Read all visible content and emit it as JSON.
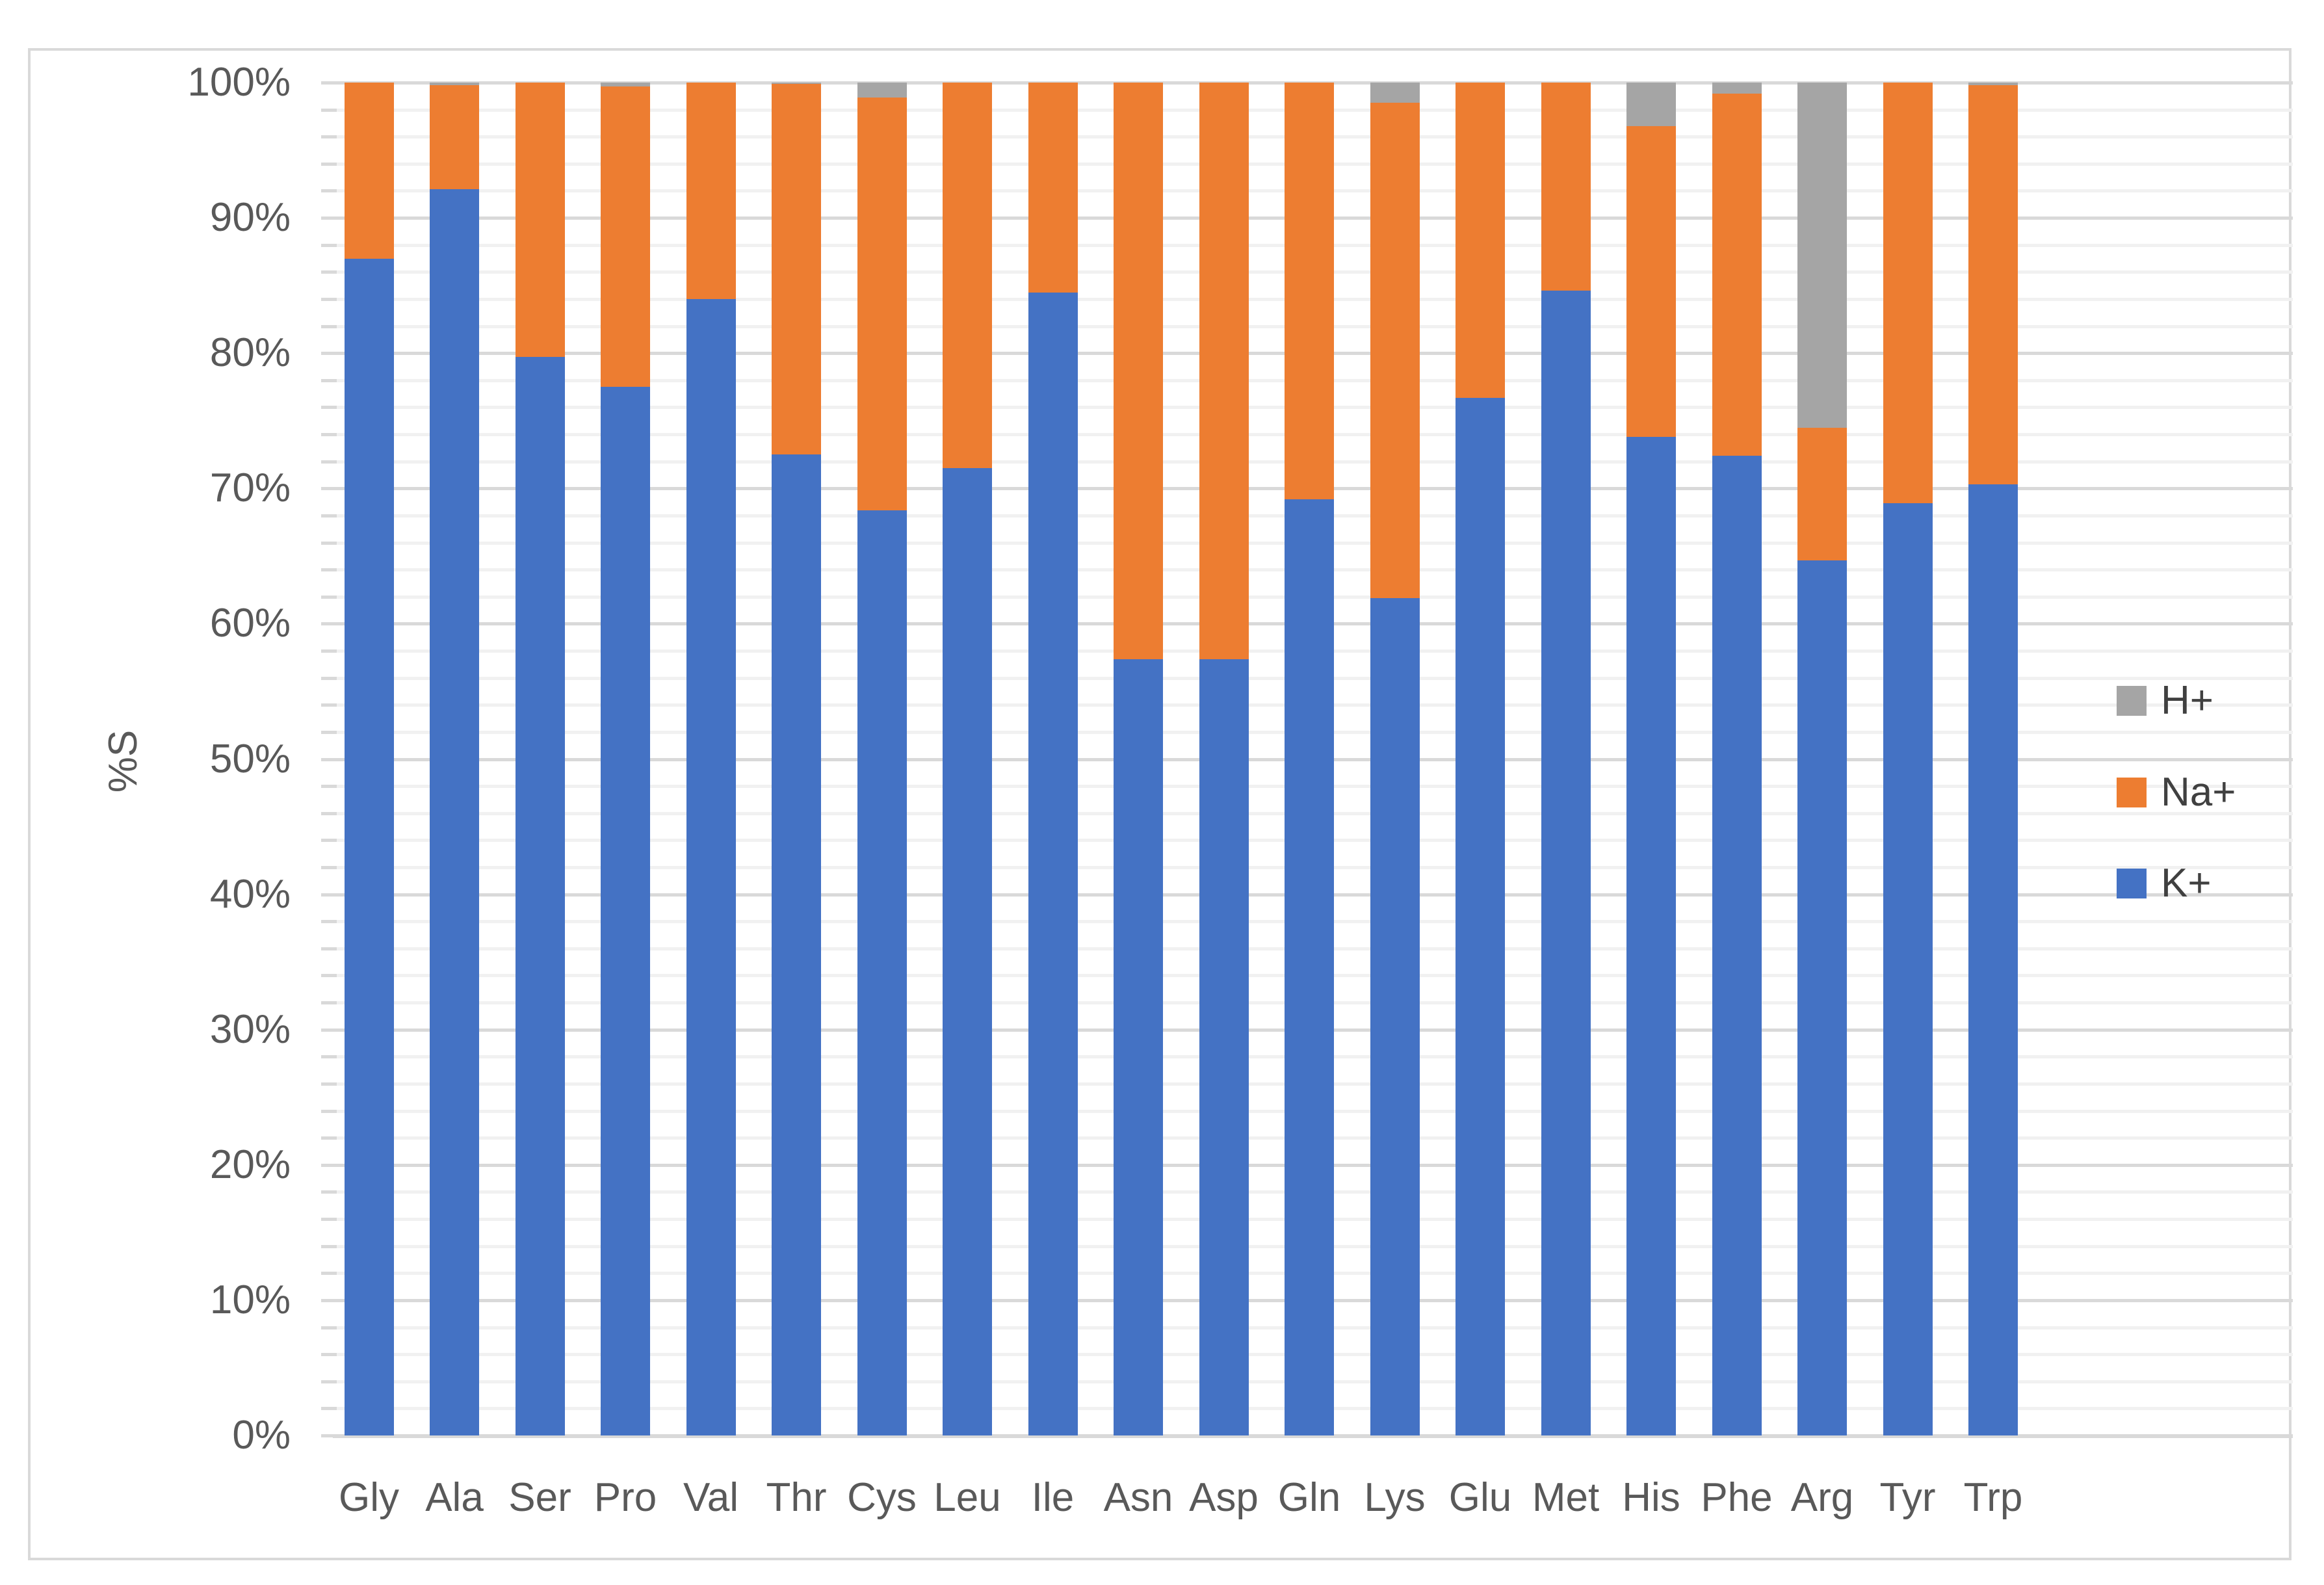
{
  "chart_data": {
    "type": "bar",
    "subtype": "100-percent-stacked-column",
    "title": "",
    "xlabel": "",
    "ylabel": "%S",
    "ylim": [
      0,
      100
    ],
    "grid": {
      "major_interval_pct": 10,
      "minor_interval_pct": 2,
      "grid_on": true
    },
    "yticks": [
      "100%",
      "90%",
      "80%",
      "70%",
      "60%",
      "50%",
      "40%",
      "30%",
      "20%",
      "10%",
      "0%"
    ],
    "categories": [
      "Gly",
      "Ala",
      "Ser",
      "Pro",
      "Val",
      "Thr",
      "Cys",
      "Leu",
      "Ile",
      "Asn",
      "Asp",
      "Gln",
      "Lys",
      "Glu",
      "Met",
      "His",
      "Phe",
      "Arg",
      "Tyr",
      "Trp"
    ],
    "series": [
      {
        "name": "K+",
        "color": "#4472c4",
        "values": [
          87.0,
          92.1,
          79.7,
          77.5,
          84.0,
          72.5,
          68.4,
          71.5,
          84.5,
          57.4,
          57.4,
          69.2,
          61.9,
          76.7,
          84.6,
          73.8,
          72.4,
          64.7,
          68.9,
          70.3
        ]
      },
      {
        "name": "Na+",
        "color": "#ed7d31",
        "values": [
          13.0,
          7.7,
          20.3,
          22.2,
          16.0,
          27.4,
          30.5,
          28.5,
          15.5,
          42.6,
          42.6,
          30.8,
          36.6,
          23.3,
          15.4,
          23.0,
          26.8,
          9.8,
          31.1,
          29.5
        ]
      },
      {
        "name": "H+",
        "color": "#a5a5a5",
        "values": [
          0.0,
          0.2,
          0.0,
          0.3,
          0.0,
          0.1,
          1.1,
          0.0,
          0.0,
          0.0,
          0.0,
          0.0,
          1.5,
          0.0,
          0.0,
          3.2,
          0.8,
          25.5,
          0.0,
          0.2
        ]
      }
    ],
    "legend": {
      "position": "right",
      "entries": [
        {
          "label": "H+",
          "color": "#a5a5a5"
        },
        {
          "label": "Na+",
          "color": "#ed7d31"
        },
        {
          "label": "K+",
          "color": "#4472c4"
        }
      ]
    }
  },
  "colors": {
    "axis_text": "#595959",
    "major_grid": "#d9d9d9",
    "minor_grid": "#f1f1f1",
    "baseline": "#d9d9d9",
    "chart_border": "#d9d9d9",
    "background": "#ffffff"
  }
}
